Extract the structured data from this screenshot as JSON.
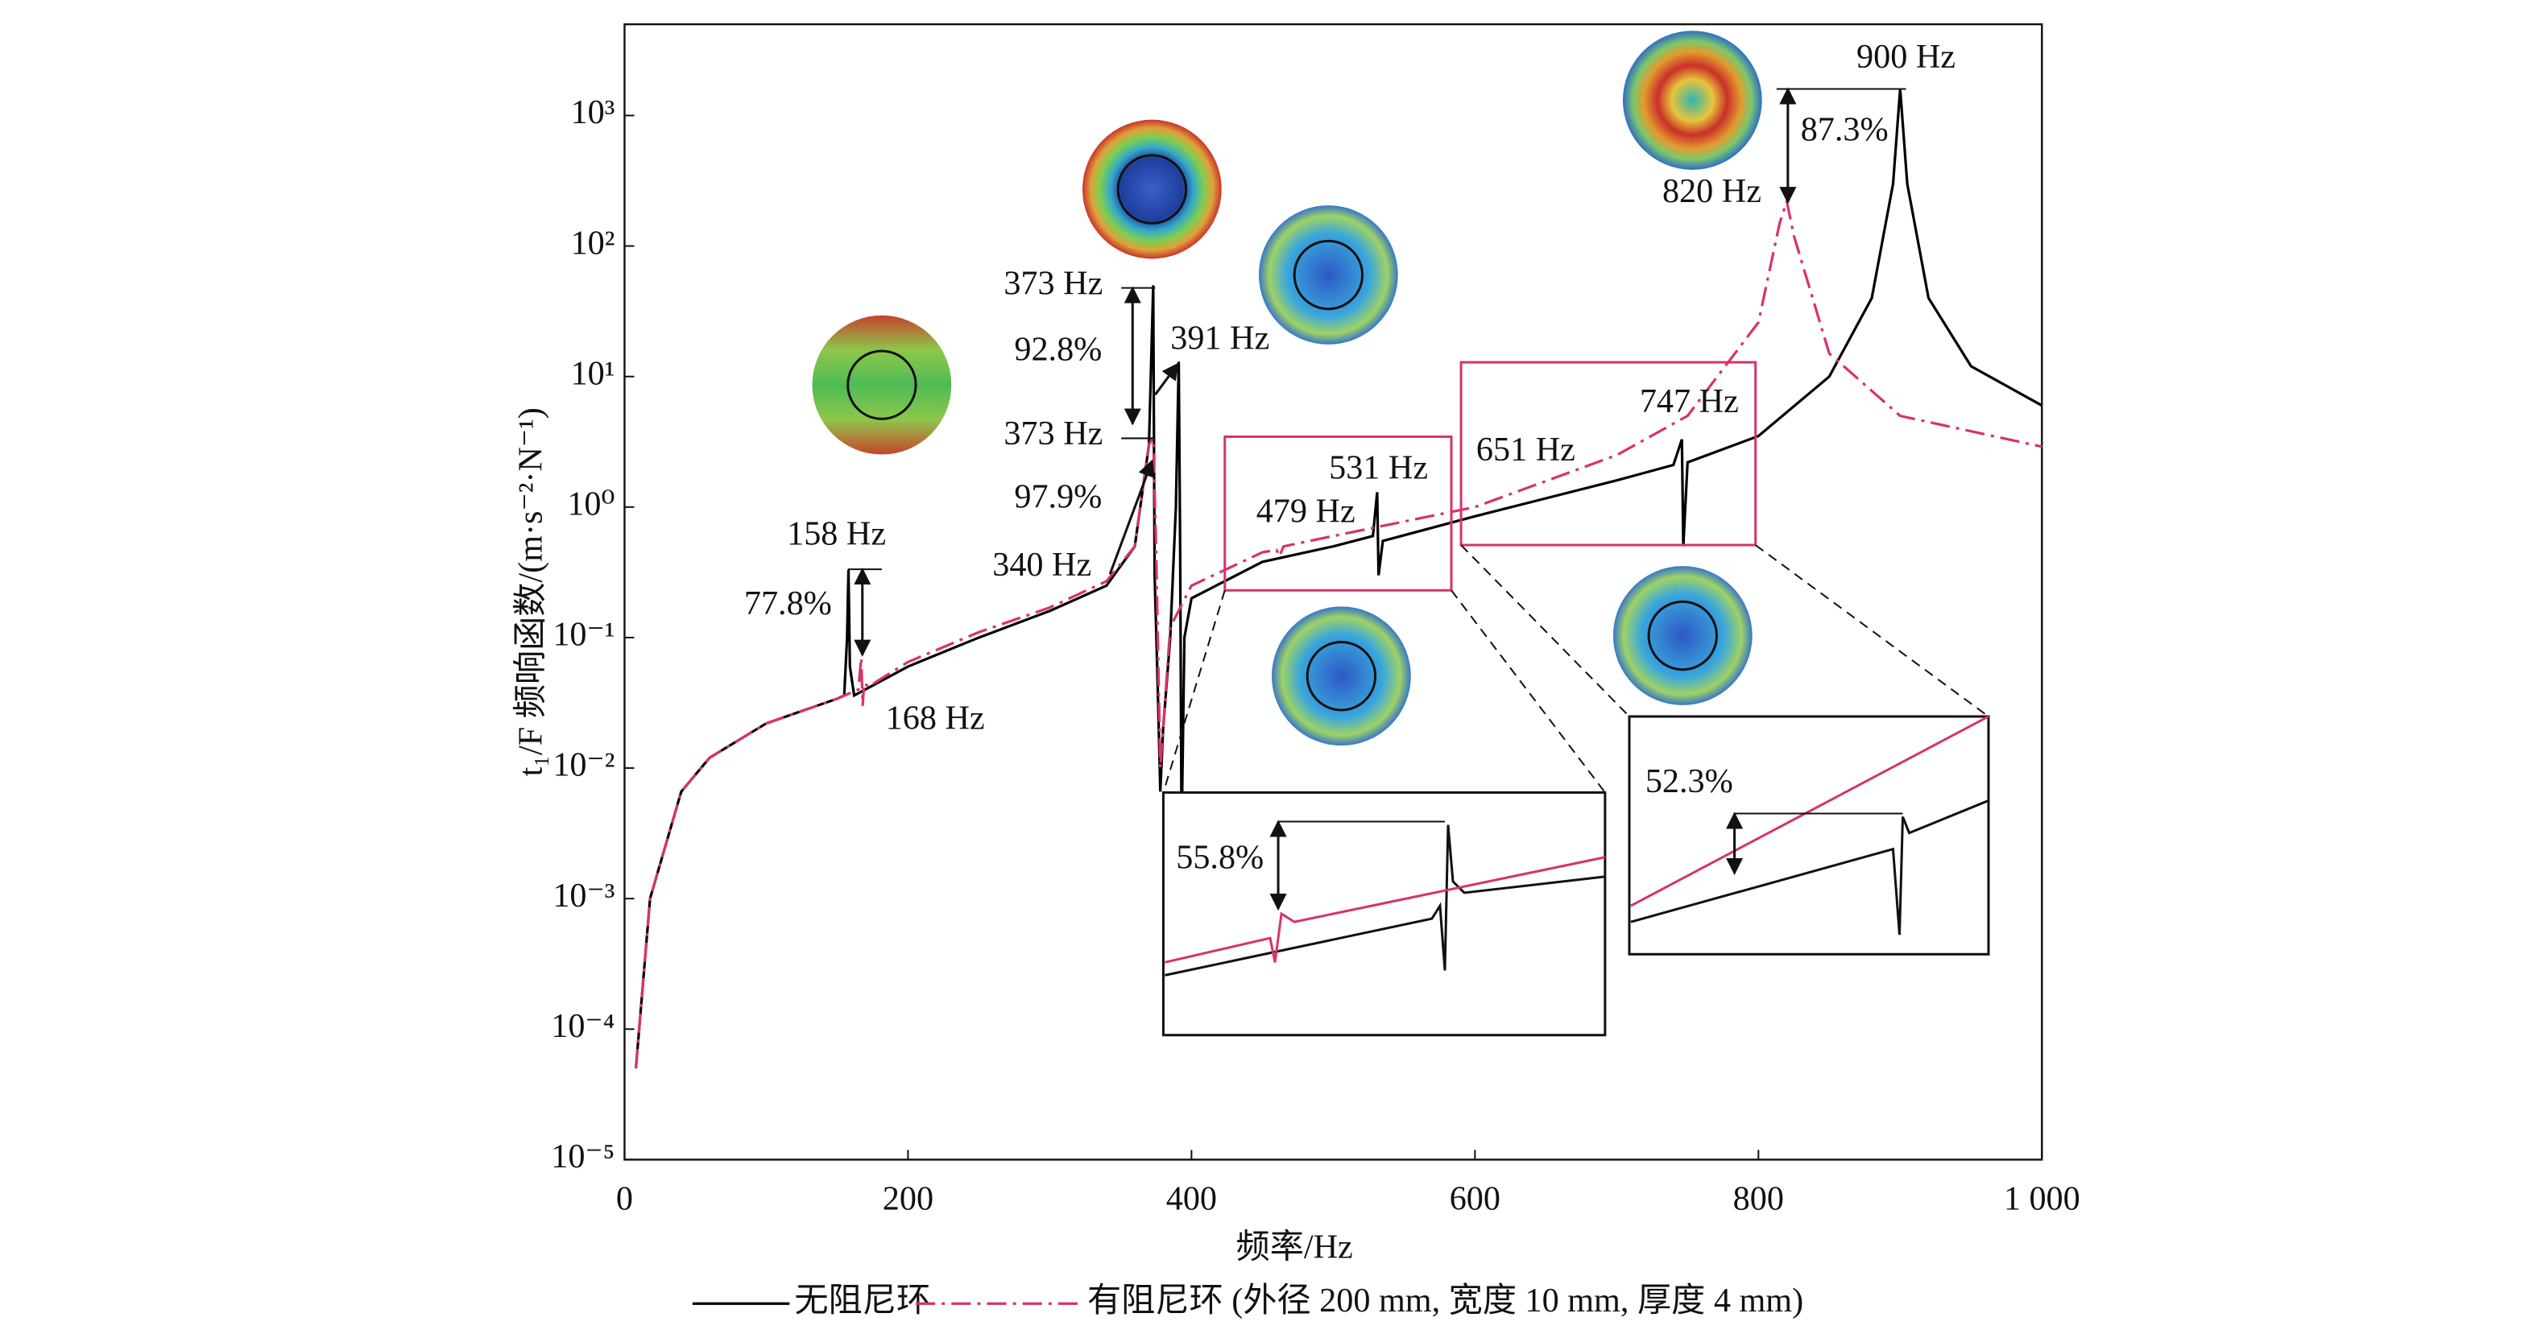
{
  "chart_data": {
    "type": "line",
    "log_y": true,
    "x_label": "频率/Hz",
    "y_label": "t₁/F 频响函数/(m·s⁻²·N⁻¹)",
    "xlim": [
      0,
      1000
    ],
    "xticks": [
      0,
      200,
      400,
      600,
      800,
      {
        "value": 1000,
        "label": "1 000"
      }
    ],
    "ylim": [
      1e-05,
      5000
    ],
    "yticks": [
      {
        "value": 1e-05,
        "label": "10⁻⁵"
      },
      {
        "value": 0.0001,
        "label": "10⁻⁴"
      },
      {
        "value": 0.001,
        "label": "10⁻³"
      },
      {
        "value": 0.01,
        "label": "10⁻²"
      },
      {
        "value": 0.1,
        "label": "10⁻¹"
      },
      {
        "value": 1,
        "label": "10⁰"
      },
      {
        "value": 10,
        "label": "10¹"
      },
      {
        "value": 100,
        "label": "10²"
      },
      {
        "value": 1000,
        "label": "10³"
      }
    ],
    "series": [
      {
        "name": "无阻尼环",
        "color": "#000000",
        "dash": "solid",
        "x": [
          8,
          18,
          40,
          60,
          100,
          150,
          155,
          157,
          158,
          159,
          162,
          200,
          250,
          300,
          340,
          360,
          370,
          373,
          374,
          376,
          378,
          380,
          385,
          389,
          391,
          392,
          393,
          395,
          400,
          450,
          500,
          528,
          531,
          532,
          535,
          600,
          700,
          740,
          746,
          747,
          750,
          800,
          850,
          880,
          895,
          900,
          905,
          920,
          950,
          1000
        ],
        "values": [
          5e-05,
          0.001,
          0.0066,
          0.012,
          0.022,
          0.034,
          0.036,
          0.1,
          0.33,
          0.06,
          0.036,
          0.06,
          0.1,
          0.16,
          0.25,
          0.5,
          3,
          50,
          0.3,
          0.05,
          0.0066,
          0.02,
          0.1,
          1,
          13,
          0.5,
          0.003,
          0.1,
          0.2,
          0.38,
          0.5,
          0.6,
          1.3,
          0.3,
          0.55,
          0.85,
          1.6,
          2.1,
          3.3,
          0.5,
          2.2,
          3.5,
          10,
          40,
          300,
          1600,
          300,
          40,
          12,
          6
        ]
      },
      {
        "name": "有阻尼环 (外径 200 mm, 宽度 10 mm, 厚度 4 mm)",
        "color": "#d6336c",
        "dash": "dashdot",
        "x": [
          8,
          18,
          40,
          60,
          100,
          150,
          165,
          167,
          168,
          169,
          172,
          200,
          250,
          300,
          340,
          360,
          370,
          373,
          375,
          378,
          380,
          385,
          400,
          450,
          460,
          462,
          465,
          500,
          600,
          700,
          750,
          800,
          815,
          820,
          825,
          850,
          900,
          1000
        ],
        "values": [
          5e-05,
          0.001,
          0.0066,
          0.012,
          0.022,
          0.034,
          0.04,
          0.07,
          0.03,
          0.045,
          0.042,
          0.065,
          0.11,
          0.17,
          0.27,
          0.5,
          3,
          3.4,
          0.5,
          0.01,
          0.02,
          0.12,
          0.25,
          0.45,
          0.47,
          0.42,
          0.5,
          0.6,
          1,
          2.5,
          5,
          26,
          150,
          220,
          120,
          15,
          5,
          2.9
        ]
      }
    ],
    "annotations": [
      "900 Hz",
      "87.3%",
      "820 Hz",
      "373 Hz",
      "92.8%",
      "391 Hz",
      "373 Hz",
      "97.9%",
      "340 Hz",
      "158 Hz",
      "77.8%",
      "168 Hz",
      "531 Hz",
      "479 Hz",
      "651 Hz",
      "747 Hz",
      "55.8%",
      "52.3%"
    ]
  }
}
